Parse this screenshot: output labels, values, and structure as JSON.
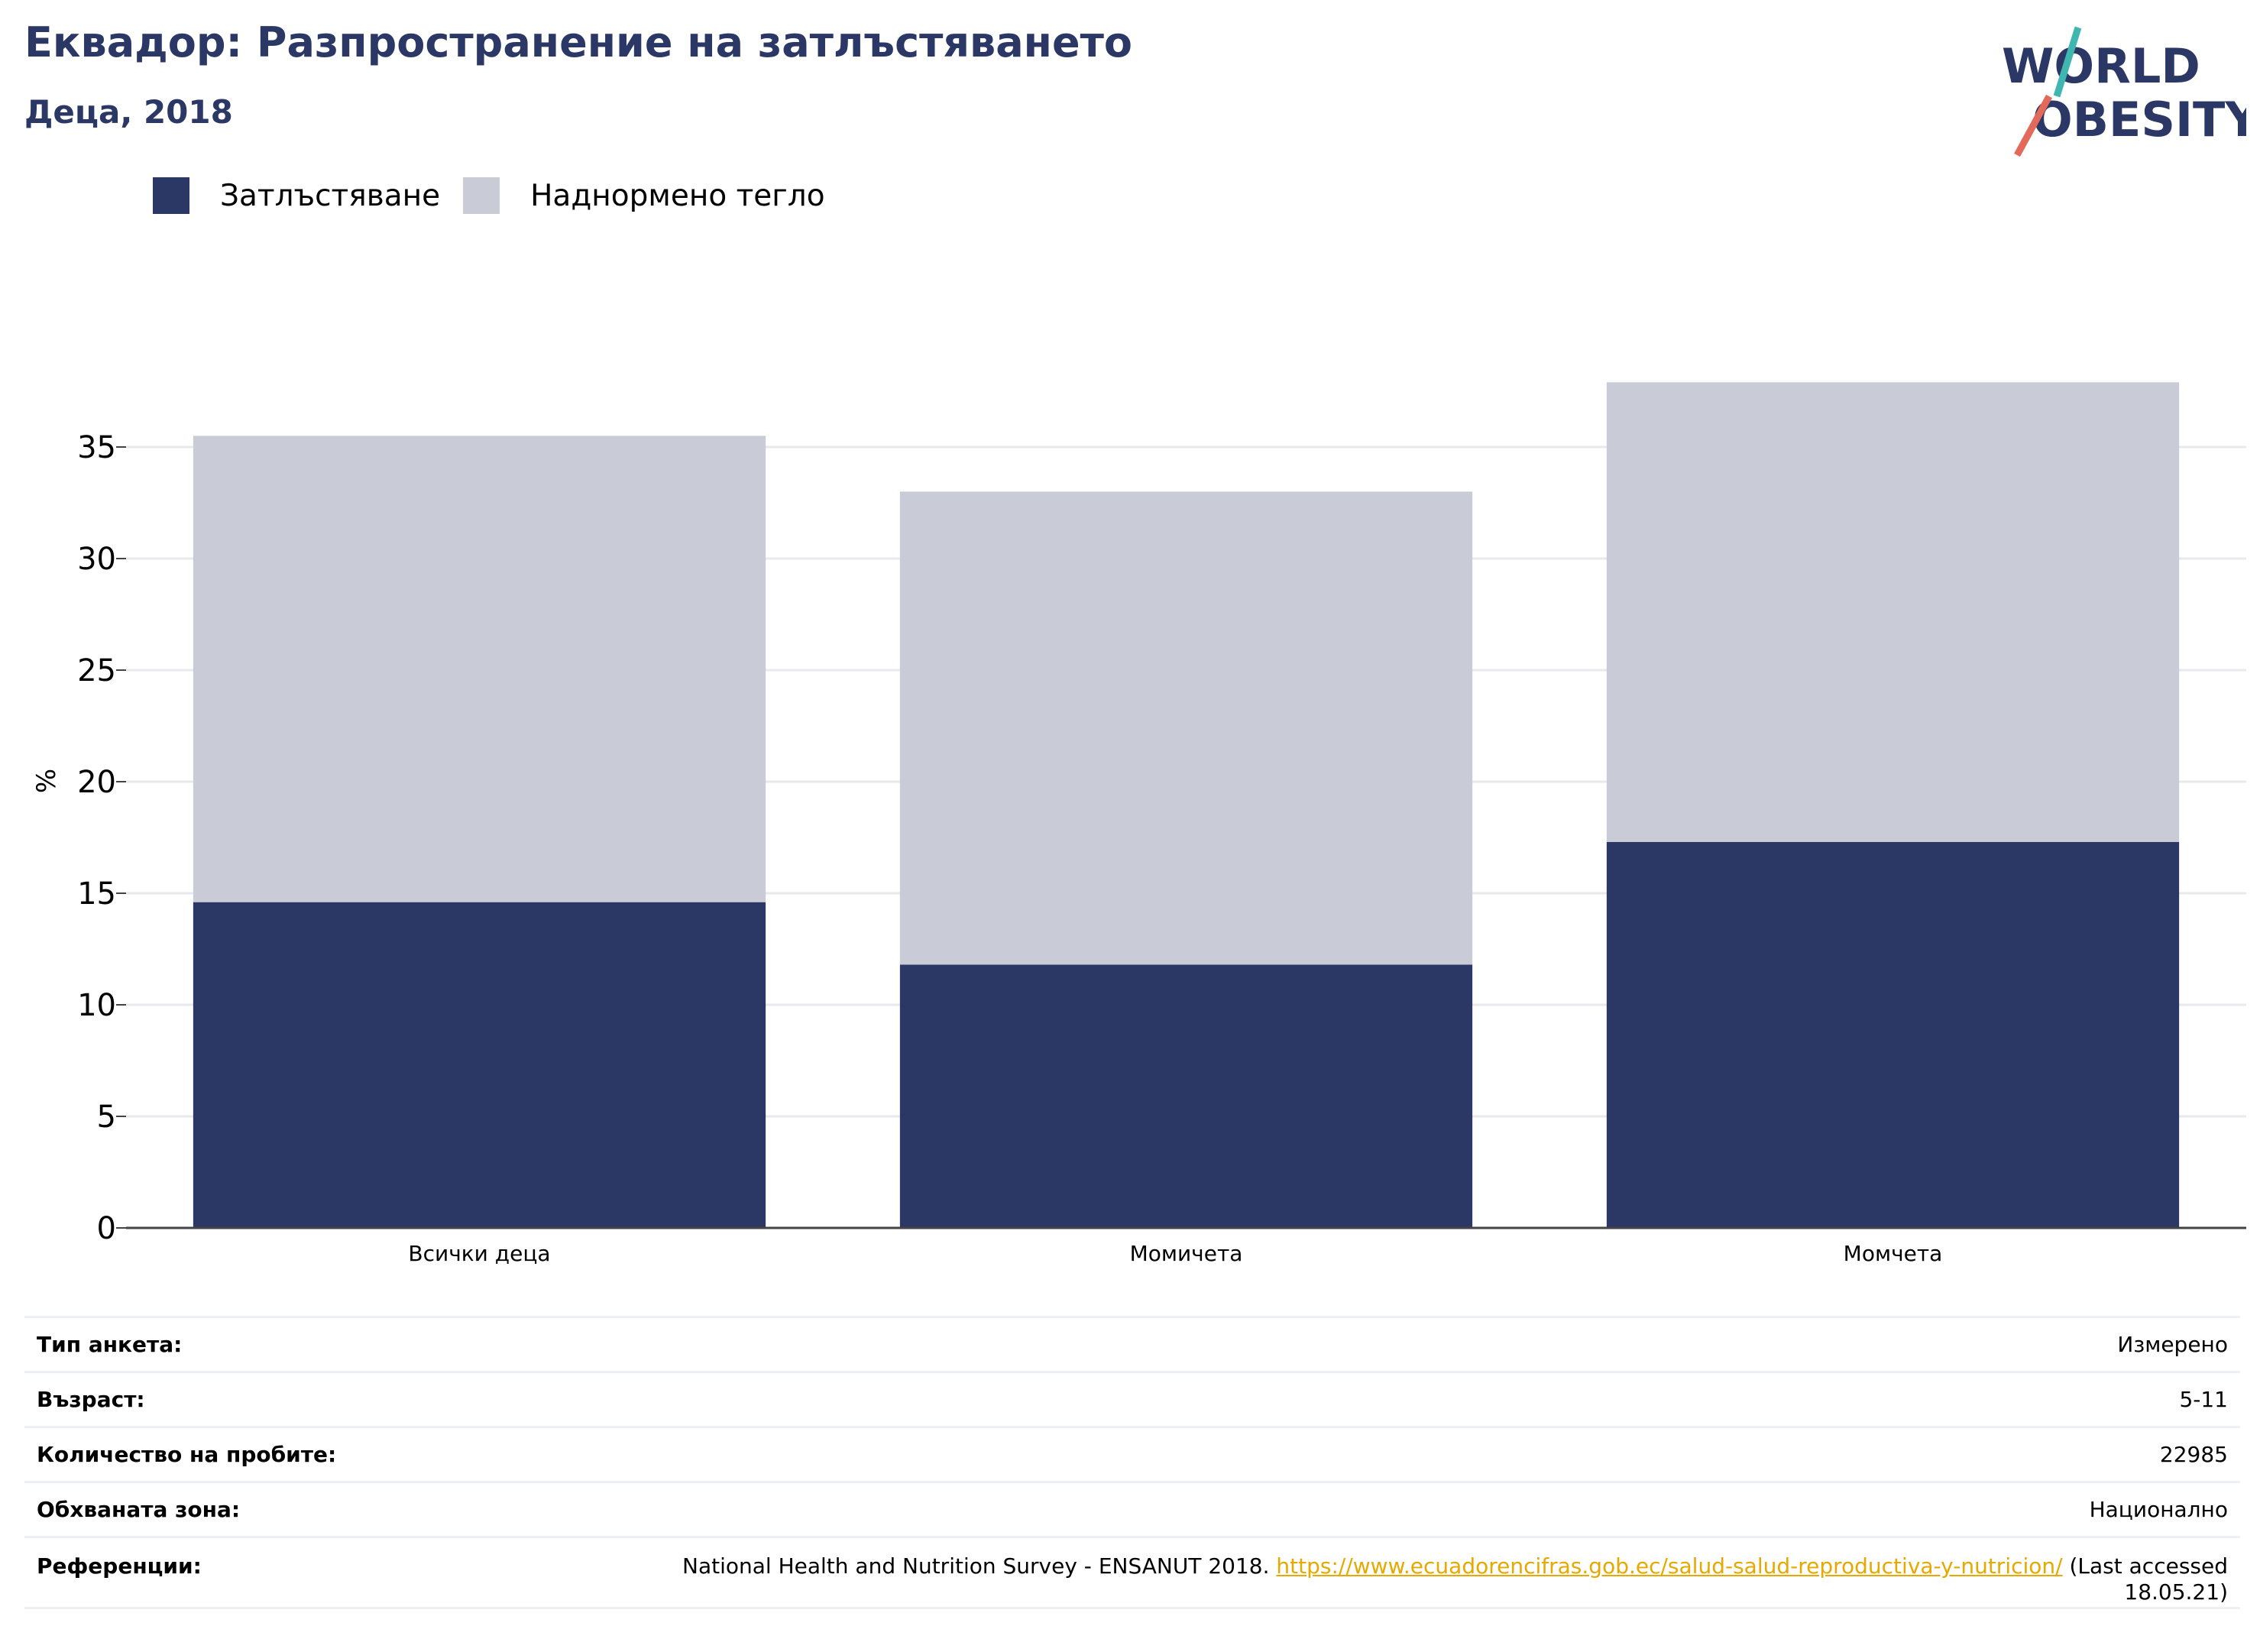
{
  "header": {
    "title": "Еквадор: Разпространение на затлъстяването",
    "subtitle": "Деца, 2018"
  },
  "logo": {
    "line1": "WORLD",
    "line2": "OBESITY"
  },
  "legend": {
    "items": [
      {
        "label": "Затлъстяване",
        "color": "#2b3765"
      },
      {
        "label": "Наднормено тегло",
        "color": "#c9cbd7"
      }
    ]
  },
  "chart_data": {
    "type": "bar",
    "stacked": true,
    "categories": [
      "Всички деца",
      "Момичета",
      "Момчета"
    ],
    "series": [
      {
        "name": "Затлъстяване",
        "values": [
          14.6,
          11.8,
          17.3
        ],
        "color": "#2b3765"
      },
      {
        "name": "Наднормено тегло",
        "values": [
          20.9,
          21.2,
          20.6
        ],
        "color": "#c9cbd7"
      }
    ],
    "ylabel": "%",
    "ylim": [
      0,
      38
    ],
    "yticks": [
      0,
      5,
      10,
      15,
      20,
      25,
      30,
      35
    ],
    "grid": true,
    "legend_position": "top-left"
  },
  "info": {
    "survey_type_label": "Тип анкета:",
    "survey_type_value": "Измерено",
    "age_label": "Възраст:",
    "age_value": "5-11",
    "sample_label": "Количество на пробите:",
    "sample_value": "22985",
    "area_label": "Обхваната зона:",
    "area_value": "Национално",
    "ref_label": "Референции:",
    "ref_text": "National Health and Nutrition Survey - ENSANUT 2018.",
    "ref_link": "https://www.ecuadorencifras.gob.ec/salud-salud-reproductiva-y-nutricion/",
    "ref_suffix": "(Last accessed 18.05.21)"
  }
}
